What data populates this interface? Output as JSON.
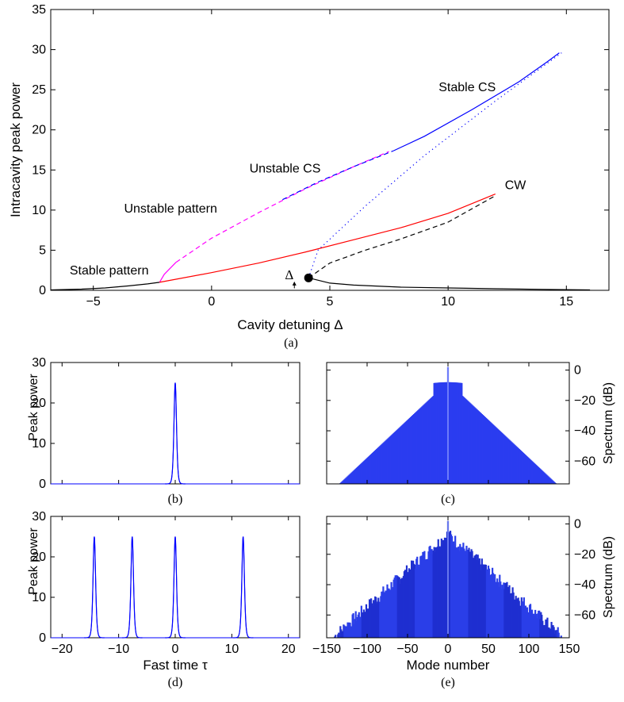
{
  "chart_data": [
    {
      "panel": "a",
      "type": "line",
      "caption": "(a)",
      "xlabel": "Cavity detuning Δ",
      "ylabel": "Intracavity peak power",
      "xlim": [
        -6.8,
        16.8
      ],
      "ylim": [
        0,
        35
      ],
      "xticks": [
        -5,
        0,
        5,
        10,
        15
      ],
      "yticks": [
        0,
        5,
        10,
        15,
        20,
        25,
        30,
        35
      ],
      "annotations": [
        {
          "text": "Stable CS",
          "x": 9.6,
          "y": 24.8
        },
        {
          "text": "Unstable CS",
          "x": 1.6,
          "y": 14.7
        },
        {
          "text": "Unstable pattern",
          "x": -3.7,
          "y": 9.7
        },
        {
          "text": "CW",
          "x": 12.4,
          "y": 12.6
        },
        {
          "text": "Stable pattern",
          "x": -6.0,
          "y": 2.0
        },
        {
          "text": "Δ",
          "x": 3.1,
          "y": 1.4
        }
      ],
      "marker_point": {
        "x": 4.1,
        "y": 1.55
      },
      "arrow": {
        "x": 3.5,
        "y_from": 0.25,
        "y_to": 1.0
      },
      "series": [
        {
          "style": "black-solid",
          "x": [
            -6.8,
            -5.5,
            -4.5,
            -3.5,
            -2.7,
            -2.2
          ],
          "y": [
            0.05,
            0.15,
            0.3,
            0.55,
            0.8,
            1.0
          ]
        },
        {
          "style": "magenta-solid",
          "x": [
            -2.2,
            -2.0,
            -1.7,
            -1.5
          ],
          "y": [
            1.0,
            2.0,
            2.9,
            3.5
          ]
        },
        {
          "style": "magenta-dashed",
          "x": [
            -1.5,
            0,
            2,
            4,
            6,
            7.5
          ],
          "y": [
            3.5,
            6.5,
            9.7,
            12.7,
            15.4,
            17.3
          ]
        },
        {
          "style": "blue-dashed",
          "x": [
            3.0,
            4.5,
            6.0,
            7.7
          ],
          "y": [
            11.3,
            13.5,
            15.4,
            17.4
          ]
        },
        {
          "style": "blue-solid",
          "x": [
            7.7,
            9,
            11,
            13,
            14.2,
            14.7
          ],
          "y": [
            17.4,
            19.2,
            22.5,
            26.0,
            28.5,
            29.6
          ]
        },
        {
          "style": "blue-dotted",
          "x": [
            4.1,
            4.5,
            6.5,
            9.0,
            12.0,
            14.8
          ],
          "y": [
            1.55,
            5.0,
            10.5,
            16.8,
            23.6,
            29.6
          ]
        },
        {
          "style": "red-solid",
          "x": [
            -2.2,
            0,
            2,
            4,
            6,
            8,
            10,
            12
          ],
          "y": [
            1.0,
            2.2,
            3.4,
            4.8,
            6.3,
            7.8,
            9.6,
            12.0
          ]
        },
        {
          "style": "black-dashed",
          "x": [
            4.1,
            5.0,
            6.5,
            8.0,
            10.0,
            12.0
          ],
          "y": [
            1.55,
            3.4,
            5.0,
            6.4,
            8.5,
            11.8
          ]
        },
        {
          "style": "black-solid",
          "x": [
            4.1,
            5,
            6,
            8,
            10,
            12,
            14,
            16
          ],
          "y": [
            1.55,
            0.9,
            0.65,
            0.4,
            0.3,
            0.2,
            0.12,
            0.05
          ]
        }
      ]
    },
    {
      "panel": "b",
      "type": "line",
      "caption": "(b)",
      "ylabel": "Peak power",
      "xlim": [
        -22,
        22
      ],
      "ylim": [
        0,
        30
      ],
      "yticks": [
        0,
        10,
        20,
        30
      ],
      "pulses": [
        {
          "center": 0,
          "height": 25,
          "width": 0.3
        }
      ]
    },
    {
      "panel": "c",
      "type": "bar",
      "caption": "(c)",
      "ylabel": "Spectrum (dB)",
      "xlim": [
        -150,
        150
      ],
      "ylim": [
        -75,
        5
      ],
      "yticks": [
        0,
        -20,
        -40,
        -60
      ],
      "envelope": {
        "peak_db": -8,
        "slope_db_per_mode": 0.5,
        "center_spike_db": 2
      }
    },
    {
      "panel": "d",
      "type": "line",
      "caption": "(d)",
      "xlabel": "Fast time τ",
      "ylabel": "Peak power",
      "xlim": [
        -22,
        22
      ],
      "ylim": [
        0,
        30
      ],
      "xticks": [
        -20,
        -10,
        0,
        10,
        20
      ],
      "yticks": [
        0,
        10,
        20,
        30
      ],
      "pulses": [
        {
          "center": -14.3,
          "height": 25,
          "width": 0.3
        },
        {
          "center": -7.6,
          "height": 25,
          "width": 0.3
        },
        {
          "center": 0,
          "height": 25,
          "width": 0.3
        },
        {
          "center": 12.0,
          "height": 25,
          "width": 0.3
        }
      ]
    },
    {
      "panel": "e",
      "type": "bar",
      "caption": "(e)",
      "xlabel": "Mode number",
      "ylabel": "Spectrum (dB)",
      "xlim": [
        -150,
        150
      ],
      "ylim": [
        -75,
        5
      ],
      "xticks": [
        -150,
        -100,
        -50,
        0,
        50,
        100,
        150
      ],
      "yticks": [
        0,
        -20,
        -40,
        -60
      ],
      "envelope": {
        "peak_db": -6,
        "slope_db_per_mode": 0.48,
        "noise_db": 9,
        "extent": 140
      }
    }
  ]
}
